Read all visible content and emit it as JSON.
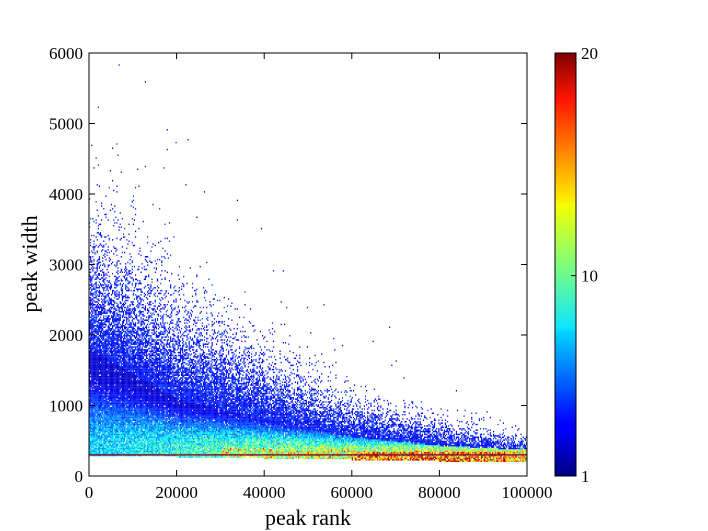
{
  "chart_data": {
    "type": "heatmap",
    "title": "",
    "xlabel": "peak rank",
    "ylabel": "peak width",
    "xlim": [
      0,
      100000
    ],
    "ylim": [
      0,
      6000
    ],
    "x_ticks": [
      0,
      20000,
      40000,
      60000,
      80000,
      100000
    ],
    "x_tick_labels": [
      "0",
      "20000",
      "40000",
      "60000",
      "80000",
      "100000"
    ],
    "y_ticks": [
      0,
      1000,
      2000,
      3000,
      4000,
      5000,
      6000
    ],
    "y_tick_labels": [
      "0",
      "1000",
      "2000",
      "3000",
      "4000",
      "5000",
      "6000"
    ],
    "grid": false,
    "colorbar": {
      "min": 1,
      "max": 20,
      "ticks": [
        1,
        10,
        20
      ],
      "tick_labels": [
        "1",
        "10",
        "20"
      ],
      "colormap": "jet"
    },
    "reference_line": {
      "y": 300,
      "color": "#8b1a2b"
    },
    "density_model": {
      "description_points": [
        {
          "rank": 0,
          "typical_width": 1500,
          "spread_top": 3500
        },
        {
          "rank": 20000,
          "typical_width": 900,
          "spread_top": 2500
        },
        {
          "rank": 40000,
          "typical_width": 650,
          "spread_top": 1700
        },
        {
          "rank": 60000,
          "typical_width": 450,
          "spread_top": 1100
        },
        {
          "rank": 80000,
          "typical_width": 350,
          "spread_top": 800
        },
        {
          "rank": 100000,
          "typical_width": 300,
          "spread_top": 550
        }
      ],
      "max_count_region": {
        "rank_range": [
          60000,
          95000
        ],
        "width_range": [
          200,
          320
        ],
        "count": 20
      }
    }
  }
}
